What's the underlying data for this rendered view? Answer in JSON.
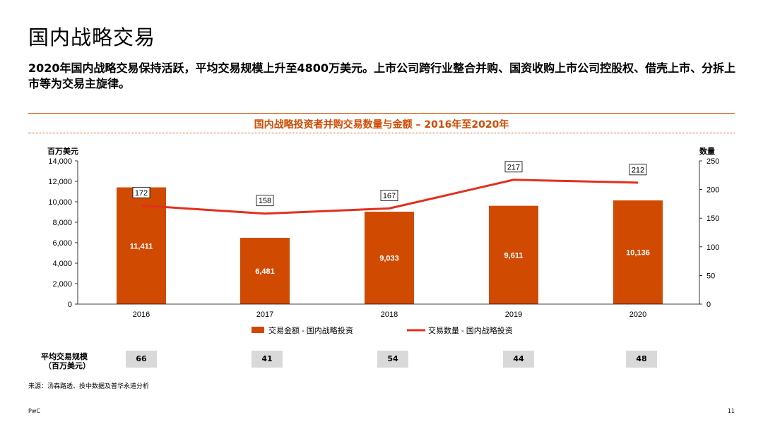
{
  "title": "国内战略交易",
  "subtitle": "2020年国内战略交易保持活跃，平均交易规模上升至4800万美元。上市公司跨行业整合并购、国资收购上市公司控股权、借壳上市、分拆上市等为交易主旋律。",
  "chart_data": {
    "type": "bar",
    "title": "国内战略投资者并购交易数量与金额 – 2016年至2020年",
    "categories": [
      "2016",
      "2017",
      "2018",
      "2019",
      "2020"
    ],
    "series": [
      {
        "name": "交易金额 - 国内战略投资",
        "type": "bar",
        "axis": "left",
        "values": [
          11411,
          6481,
          9033,
          9611,
          10136
        ],
        "labels": [
          "11,411",
          "6,481",
          "9,033",
          "9,611",
          "10,136"
        ]
      },
      {
        "name": "交易数量 - 国内战略投资",
        "type": "line",
        "axis": "right",
        "values": [
          172,
          158,
          167,
          217,
          212
        ],
        "labels": [
          "172",
          "158",
          "167",
          "217",
          "212"
        ]
      }
    ],
    "ylabel_left": "百万美元",
    "ylabel_right": "数量",
    "ylim_left": [
      0,
      14000
    ],
    "ylim_right": [
      0,
      250
    ],
    "left_ticks": [
      "0",
      "2,000",
      "4,000",
      "6,000",
      "8,000",
      "10,000",
      "12,000",
      "14,000"
    ],
    "right_ticks": [
      "0",
      "50",
      "100",
      "150",
      "200",
      "250"
    ],
    "legend_position": "bottom",
    "colors": {
      "bar": "#d04a02",
      "line": "#e0301e"
    }
  },
  "average_deal_size": {
    "label": "平均交易规模\n（百万美元）",
    "values": [
      "66",
      "41",
      "54",
      "44",
      "48"
    ]
  },
  "source": "来源：汤森路透、投中数据及普华永道分析",
  "footer": {
    "brand": "PwC",
    "page": "11"
  }
}
